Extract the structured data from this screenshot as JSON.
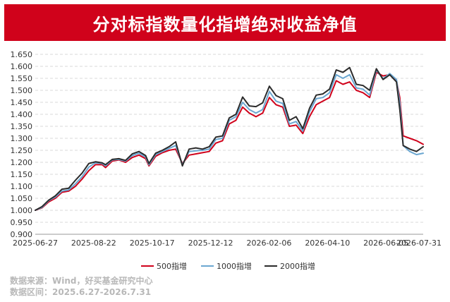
{
  "chart_data": {
    "type": "line",
    "title": "分对标指数量化指增绝对收益净值",
    "ylim": [
      0.9,
      1.65
    ],
    "y_ticks": [
      "0.900",
      "0.950",
      "1.000",
      "1.050",
      "1.100",
      "1.150",
      "1.200",
      "1.250",
      "1.300",
      "1.350",
      "1.400",
      "1.450",
      "1.500",
      "1.550",
      "1.600",
      "1.650"
    ],
    "x_tick_labels": [
      "2025-06-27",
      "2025-08-22",
      "2025-10-17",
      "2025-12-12",
      "2026-02-06",
      "2026-04-10",
      "2026-06-05",
      "2026-07-31"
    ],
    "grid": "horizontal-dashed",
    "legend_position": "bottom",
    "series": [
      {
        "name": "500指增",
        "color": "#d0021b",
        "points": [
          [
            0,
            1.0
          ],
          [
            2,
            1.01
          ],
          [
            4,
            1.035
          ],
          [
            6,
            1.05
          ],
          [
            8,
            1.075
          ],
          [
            10,
            1.08
          ],
          [
            12,
            1.1
          ],
          [
            14,
            1.13
          ],
          [
            16,
            1.165
          ],
          [
            18,
            1.19
          ],
          [
            20,
            1.19
          ],
          [
            21,
            1.178
          ],
          [
            23,
            1.205
          ],
          [
            25,
            1.21
          ],
          [
            27,
            1.2
          ],
          [
            29,
            1.22
          ],
          [
            31,
            1.23
          ],
          [
            33,
            1.215
          ],
          [
            34,
            1.185
          ],
          [
            36,
            1.225
          ],
          [
            38,
            1.24
          ],
          [
            40,
            1.25
          ],
          [
            42,
            1.255
          ],
          [
            44,
            1.195
          ],
          [
            46,
            1.23
          ],
          [
            48,
            1.235
          ],
          [
            50,
            1.24
          ],
          [
            52,
            1.245
          ],
          [
            54,
            1.28
          ],
          [
            56,
            1.29
          ],
          [
            58,
            1.36
          ],
          [
            60,
            1.375
          ],
          [
            62,
            1.43
          ],
          [
            64,
            1.405
          ],
          [
            66,
            1.39
          ],
          [
            68,
            1.405
          ],
          [
            70,
            1.47
          ],
          [
            72,
            1.44
          ],
          [
            74,
            1.43
          ],
          [
            76,
            1.35
          ],
          [
            78,
            1.355
          ],
          [
            80,
            1.32
          ],
          [
            82,
            1.39
          ],
          [
            84,
            1.44
          ],
          [
            86,
            1.455
          ],
          [
            88,
            1.47
          ],
          [
            90,
            1.54
          ],
          [
            92,
            1.525
          ],
          [
            94,
            1.535
          ],
          [
            96,
            1.5
          ],
          [
            98,
            1.49
          ],
          [
            100,
            1.47
          ],
          [
            102,
            1.575
          ],
          [
            104,
            1.56
          ],
          [
            106,
            1.565
          ],
          [
            108,
            1.54
          ],
          [
            109,
            1.47
          ],
          [
            110,
            1.31
          ],
          [
            112,
            1.3
          ],
          [
            114,
            1.29
          ],
          [
            116,
            1.275
          ]
        ]
      },
      {
        "name": "1000指增",
        "color": "#6ba7d1",
        "points": [
          [
            0,
            1.0
          ],
          [
            2,
            1.012
          ],
          [
            4,
            1.04
          ],
          [
            6,
            1.055
          ],
          [
            8,
            1.08
          ],
          [
            10,
            1.085
          ],
          [
            12,
            1.11
          ],
          [
            14,
            1.14
          ],
          [
            16,
            1.18
          ],
          [
            18,
            1.198
          ],
          [
            20,
            1.195
          ],
          [
            21,
            1.185
          ],
          [
            23,
            1.21
          ],
          [
            25,
            1.212
          ],
          [
            27,
            1.205
          ],
          [
            29,
            1.228
          ],
          [
            31,
            1.238
          ],
          [
            33,
            1.222
          ],
          [
            34,
            1.19
          ],
          [
            36,
            1.232
          ],
          [
            38,
            1.245
          ],
          [
            40,
            1.258
          ],
          [
            42,
            1.27
          ],
          [
            44,
            1.19
          ],
          [
            46,
            1.245
          ],
          [
            48,
            1.248
          ],
          [
            50,
            1.25
          ],
          [
            52,
            1.255
          ],
          [
            54,
            1.295
          ],
          [
            56,
            1.3
          ],
          [
            58,
            1.375
          ],
          [
            60,
            1.39
          ],
          [
            62,
            1.45
          ],
          [
            64,
            1.42
          ],
          [
            66,
            1.405
          ],
          [
            68,
            1.42
          ],
          [
            70,
            1.495
          ],
          [
            72,
            1.455
          ],
          [
            74,
            1.445
          ],
          [
            76,
            1.36
          ],
          [
            78,
            1.37
          ],
          [
            80,
            1.33
          ],
          [
            82,
            1.41
          ],
          [
            84,
            1.465
          ],
          [
            86,
            1.47
          ],
          [
            88,
            1.49
          ],
          [
            90,
            1.565
          ],
          [
            92,
            1.55
          ],
          [
            94,
            1.565
          ],
          [
            96,
            1.51
          ],
          [
            98,
            1.505
          ],
          [
            100,
            1.48
          ],
          [
            102,
            1.585
          ],
          [
            104,
            1.548
          ],
          [
            106,
            1.57
          ],
          [
            108,
            1.545
          ],
          [
            109,
            1.45
          ],
          [
            110,
            1.27
          ],
          [
            112,
            1.245
          ],
          [
            114,
            1.232
          ],
          [
            116,
            1.238
          ]
        ]
      },
      {
        "name": "2000指增",
        "color": "#2b2b2b",
        "points": [
          [
            0,
            1.0
          ],
          [
            2,
            1.015
          ],
          [
            4,
            1.042
          ],
          [
            6,
            1.06
          ],
          [
            8,
            1.088
          ],
          [
            10,
            1.092
          ],
          [
            12,
            1.125
          ],
          [
            14,
            1.155
          ],
          [
            16,
            1.195
          ],
          [
            18,
            1.202
          ],
          [
            20,
            1.198
          ],
          [
            21,
            1.19
          ],
          [
            23,
            1.212
          ],
          [
            25,
            1.215
          ],
          [
            27,
            1.208
          ],
          [
            29,
            1.235
          ],
          [
            31,
            1.245
          ],
          [
            33,
            1.228
          ],
          [
            34,
            1.195
          ],
          [
            36,
            1.238
          ],
          [
            38,
            1.25
          ],
          [
            40,
            1.265
          ],
          [
            42,
            1.285
          ],
          [
            44,
            1.185
          ],
          [
            46,
            1.255
          ],
          [
            48,
            1.26
          ],
          [
            50,
            1.255
          ],
          [
            52,
            1.265
          ],
          [
            54,
            1.305
          ],
          [
            56,
            1.31
          ],
          [
            58,
            1.385
          ],
          [
            60,
            1.4
          ],
          [
            62,
            1.472
          ],
          [
            64,
            1.435
          ],
          [
            66,
            1.432
          ],
          [
            68,
            1.448
          ],
          [
            70,
            1.517
          ],
          [
            72,
            1.478
          ],
          [
            74,
            1.465
          ],
          [
            76,
            1.375
          ],
          [
            78,
            1.39
          ],
          [
            80,
            1.34
          ],
          [
            82,
            1.425
          ],
          [
            84,
            1.48
          ],
          [
            86,
            1.485
          ],
          [
            88,
            1.505
          ],
          [
            90,
            1.585
          ],
          [
            92,
            1.575
          ],
          [
            94,
            1.595
          ],
          [
            96,
            1.525
          ],
          [
            98,
            1.52
          ],
          [
            100,
            1.5
          ],
          [
            102,
            1.59
          ],
          [
            104,
            1.545
          ],
          [
            106,
            1.565
          ],
          [
            108,
            1.535
          ],
          [
            109,
            1.42
          ],
          [
            110,
            1.27
          ],
          [
            112,
            1.255
          ],
          [
            114,
            1.245
          ],
          [
            116,
            1.265
          ]
        ]
      }
    ]
  },
  "footer": {
    "source": "数据来源：Wind，好买基金研究中心",
    "interval": "数据区间：2025.6.27-2026.7.31"
  }
}
